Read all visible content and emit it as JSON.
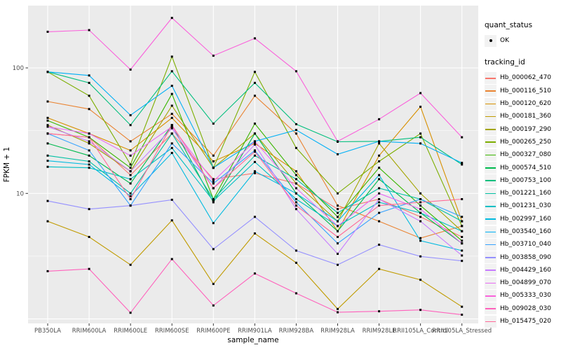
{
  "legend": {
    "quant_status_title": "quant_status",
    "ok_label": "OK",
    "tracking_id_title": "tracking_id"
  },
  "chart_data": {
    "type": "line",
    "title": "",
    "xlabel": "sample_name",
    "ylabel": "FPKM + 1",
    "y_scale": "log10",
    "ylim": [
      0.85,
      320
    ],
    "grid": true,
    "legend_position": "right",
    "panel_bg": "#EBEBEB",
    "grid_color": "#FFFFFF",
    "point_color": "#000000",
    "tick_label_color": "#4D4D4D",
    "y_ticks": [
      {
        "value": 100,
        "label": "100"
      },
      {
        "value": 10,
        "label": "10"
      }
    ],
    "y_minor": [
      3.162,
      31.62
    ],
    "y_major_unlabeled": [
      1
    ],
    "categories": [
      "PB350LA",
      "RRIM600LA",
      "RRIM600LE",
      "RRIM600SE",
      "RRIM600PE",
      "RRIM901LA",
      "RRIM928BA",
      "RRIM928LA",
      "RRIM928LE",
      "RRII105LA_Control",
      "RRII105LA_Stressed"
    ],
    "quant_status": "OK",
    "series": [
      {
        "name": "Hb_000062_470",
        "color": "#F8766D",
        "values": [
          30,
          28,
          14,
          30,
          13,
          14.5,
          12,
          7.5,
          9,
          6.5,
          4.5
        ]
      },
      {
        "name": "Hb_000116_510",
        "color": "#EA8331",
        "values": [
          54,
          47,
          26,
          43,
          20,
          60,
          30,
          8,
          6,
          4.4,
          5.5
        ]
      },
      {
        "name": "Hb_000120_620",
        "color": "#D89000",
        "values": [
          40,
          30,
          22,
          40,
          18,
          25,
          15,
          5,
          20,
          49,
          6
        ]
      },
      {
        "name": "Hb_000181_360",
        "color": "#C09B00",
        "values": [
          6,
          4.5,
          2.7,
          6.1,
          1.9,
          4.8,
          2.8,
          1.2,
          2.5,
          2.05,
          1.25
        ]
      },
      {
        "name": "Hb_000197_290",
        "color": "#A3A500",
        "values": [
          35,
          25,
          15,
          50,
          16,
          30,
          12,
          6,
          25,
          10,
          5
        ]
      },
      {
        "name": "Hb_000265_250",
        "color": "#7CAE00",
        "values": [
          93,
          60,
          17,
          123,
          16,
          93,
          23,
          10,
          18,
          30,
          5.5
        ]
      },
      {
        "name": "Hb_000327_080",
        "color": "#39B600",
        "values": [
          38,
          28,
          16,
          62,
          9,
          36,
          14,
          6.5,
          16,
          8,
          4.2
        ]
      },
      {
        "name": "Hb_000574_510",
        "color": "#00BB4E",
        "values": [
          25,
          20,
          12,
          35,
          8.5,
          30,
          10,
          5,
          13,
          7,
          4
        ]
      },
      {
        "name": "Hb_000753_100",
        "color": "#00BF7D",
        "values": [
          93,
          76,
          35,
          94,
          36,
          76,
          35.6,
          25.8,
          26,
          28,
          17
        ]
      },
      {
        "name": "Hb_001221_160",
        "color": "#00C1A3",
        "values": [
          20,
          18,
          10,
          30,
          9,
          20,
          13,
          7,
          11,
          9,
          6
        ]
      },
      {
        "name": "Hb_001231_030",
        "color": "#00BFC4",
        "values": [
          16.3,
          16,
          13,
          23,
          8.7,
          17.8,
          9,
          5.5,
          8.5,
          7,
          5
        ]
      },
      {
        "name": "Hb_002997_160",
        "color": "#00BAE0",
        "values": [
          18.2,
          17,
          9.5,
          21,
          5.8,
          15,
          10,
          6,
          14,
          4.2,
          3.5
        ]
      },
      {
        "name": "Hb_003540_160",
        "color": "#00B0F6",
        "values": [
          93,
          87,
          42,
          72,
          16,
          26,
          32,
          20.5,
          26,
          25,
          17.5
        ]
      },
      {
        "name": "Hb_003710_040",
        "color": "#35A2FF",
        "values": [
          30,
          22,
          8,
          25,
          12,
          22,
          8.5,
          4,
          7,
          9,
          6.5
        ]
      },
      {
        "name": "Hb_003858_090",
        "color": "#9590FF",
        "values": [
          8.7,
          7.5,
          8,
          8.9,
          3.6,
          6.5,
          3.5,
          2.7,
          3.9,
          3.15,
          2.9
        ]
      },
      {
        "name": "Hb_004429_160",
        "color": "#C77CFF",
        "values": [
          34,
          26,
          15,
          33,
          11,
          24.5,
          7.5,
          3.3,
          9,
          6,
          3.2
        ]
      },
      {
        "name": "Hb_004899_070",
        "color": "#E76BF3",
        "values": [
          34,
          30,
          20,
          34,
          12.5,
          26,
          11,
          5.5,
          10,
          7.5,
          4
        ]
      },
      {
        "name": "Hb_005333_030",
        "color": "#FA62DB",
        "values": [
          194,
          200,
          97,
          250,
          125,
          172,
          94,
          26,
          39,
          63,
          28
        ]
      },
      {
        "name": "Hb_009028_030",
        "color": "#FF62BC",
        "values": [
          2.4,
          2.5,
          1.12,
          3,
          1.28,
          2.3,
          1.6,
          1.13,
          1.15,
          1.18,
          1.08
        ]
      },
      {
        "name": "Hb_015475_020",
        "color": "#FF6A98",
        "values": [
          30,
          28,
          9,
          35,
          11,
          21.5,
          8,
          4.5,
          8,
          8.5,
          9
        ]
      }
    ]
  }
}
